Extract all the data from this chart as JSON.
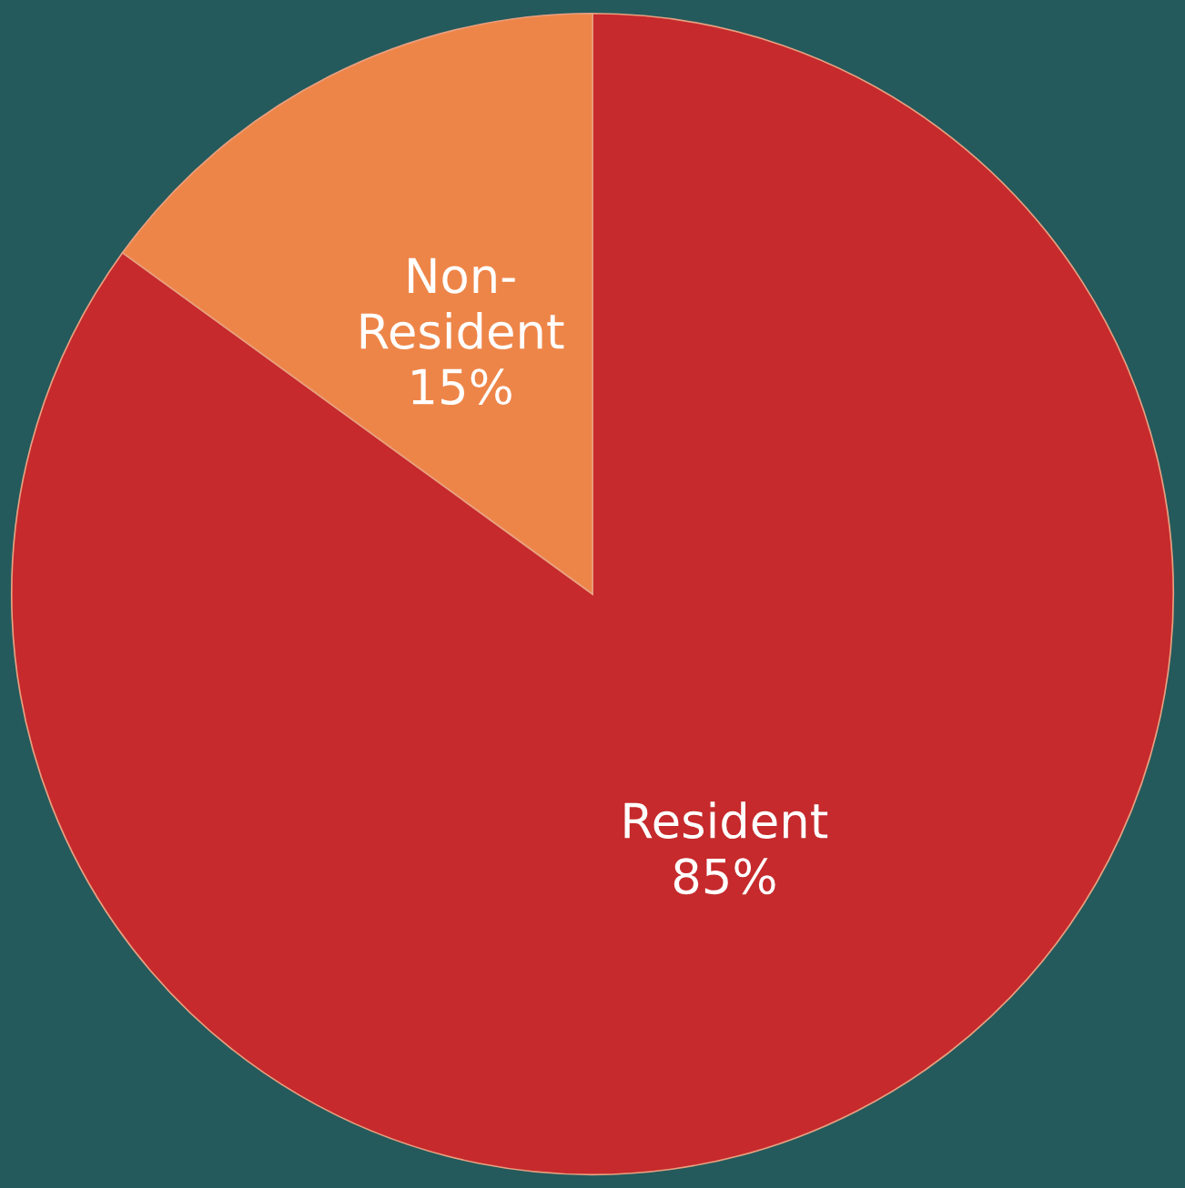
{
  "chart_data": {
    "type": "pie",
    "categories": [
      "Resident",
      "Non-Resident"
    ],
    "values": [
      85,
      15
    ],
    "colors": [
      "#c62a2c",
      "#ee8548"
    ],
    "value_labels": [
      "85%",
      "15%"
    ],
    "legend": false
  }
}
